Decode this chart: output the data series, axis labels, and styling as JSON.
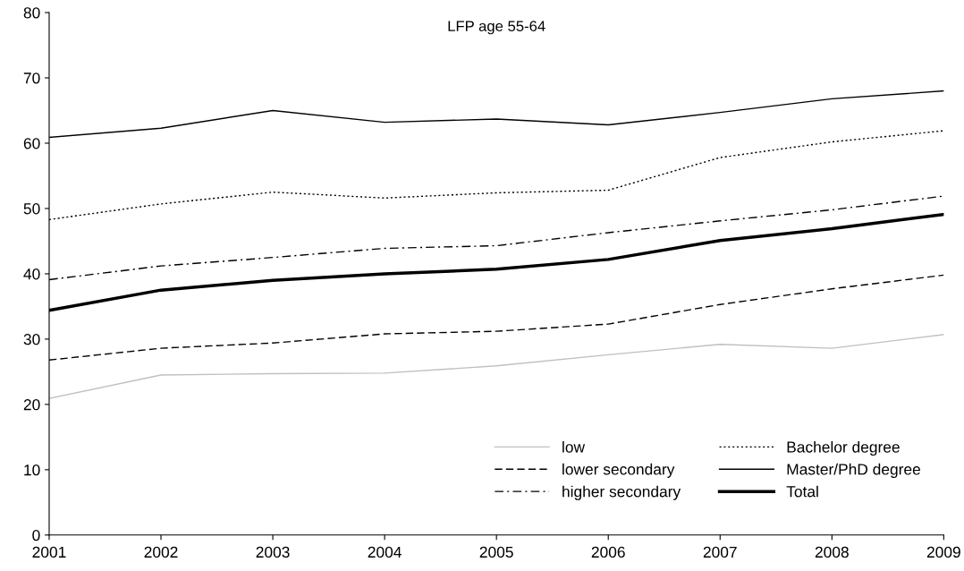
{
  "chart_data": {
    "type": "line",
    "title": "LFP age 55-64",
    "x": [
      2001,
      2002,
      2003,
      2004,
      2005,
      2006,
      2007,
      2008,
      2009
    ],
    "xlim": [
      2001,
      2009
    ],
    "xticks": [
      2001,
      2002,
      2003,
      2004,
      2005,
      2006,
      2007,
      2008,
      2009
    ],
    "ylim": [
      0,
      80
    ],
    "yticks": [
      0,
      10,
      20,
      30,
      40,
      50,
      60,
      70,
      80
    ],
    "grid": false,
    "legend": "bottom right",
    "marker": "none",
    "series": [
      {
        "name": "low",
        "color": "#c0c0c0",
        "line_style": "solid",
        "values": [
          20.9,
          24.5,
          24.7,
          24.8,
          25.9,
          27.6,
          29.2,
          28.6,
          30.7
        ]
      },
      {
        "name": "lower secondary",
        "color": "#000000",
        "line_style": "dashed",
        "values": [
          26.8,
          28.6,
          29.4,
          30.8,
          31.2,
          32.3,
          35.3,
          37.7,
          39.8
        ]
      },
      {
        "name": "higher secondary",
        "color": "#000000",
        "line_style": "dashdot",
        "values": [
          39.1,
          41.2,
          42.5,
          43.9,
          44.3,
          46.3,
          48.1,
          49.8,
          51.9
        ]
      },
      {
        "name": "Bachelor degree",
        "color": "#000000",
        "line_style": "dotted",
        "values": [
          48.3,
          50.7,
          52.5,
          51.6,
          52.4,
          52.8,
          57.8,
          60.2,
          61.9
        ]
      },
      {
        "name": "Master/PhD degree",
        "color": "#000000",
        "line_style": "solid",
        "values": [
          60.9,
          62.3,
          65.0,
          63.2,
          63.7,
          62.8,
          64.7,
          66.8,
          68.0
        ]
      },
      {
        "name": "Total",
        "color": "#000000",
        "line_style": "solid",
        "values": [
          34.4,
          37.5,
          39.0,
          40.0,
          40.7,
          42.2,
          45.1,
          46.9,
          49.1
        ]
      }
    ]
  }
}
